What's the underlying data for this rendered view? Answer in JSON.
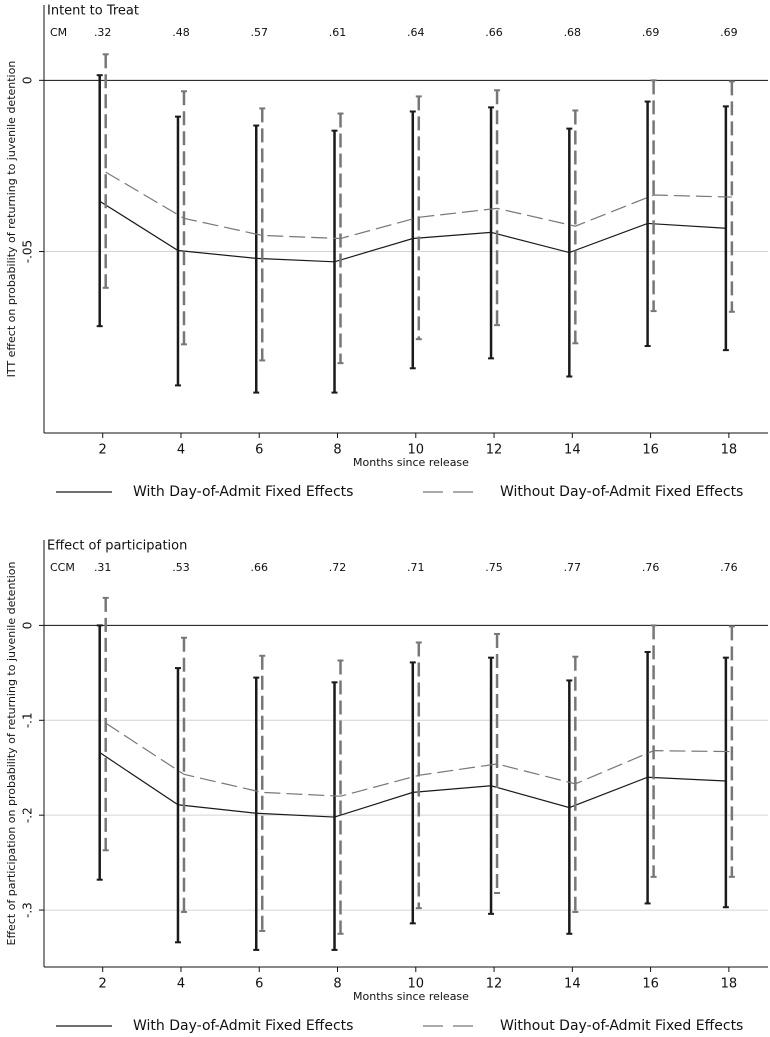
{
  "chart_data": [
    {
      "type": "line",
      "title": "Intent to Treat",
      "y_label": "ITT effect on probability of returning to juvenile detention",
      "x_label": "Months since release",
      "annotation_label": "CM",
      "annotations": [
        ".32",
        ".48",
        ".57",
        ".61",
        ".64",
        ".66",
        ".68",
        ".69",
        ".69"
      ],
      "x": [
        2,
        4,
        6,
        8,
        10,
        12,
        14,
        16,
        18
      ],
      "xlim": [
        0.5,
        19
      ],
      "xticks": [
        2,
        4,
        6,
        8,
        10,
        12,
        14,
        16,
        18
      ],
      "ylim": [
        -0.103,
        0.022
      ],
      "yticks": [
        {
          "value": -0.05,
          "label": "-.05"
        },
        0
      ],
      "grid": true,
      "legend": "bottom",
      "series": [
        {
          "name": "With Day-of-Admit Fixed Effects",
          "color": "#1a1a1a",
          "dashed": false,
          "values": [
            -0.0353,
            -0.0497,
            -0.052,
            -0.053,
            -0.0462,
            -0.0444,
            -0.0503,
            -0.0418,
            -0.0432
          ],
          "ci_low": [
            -0.0718,
            -0.0891,
            -0.0912,
            -0.0912,
            -0.0841,
            -0.0812,
            -0.0865,
            -0.0776,
            -0.0788
          ],
          "ci_high": [
            0.0015,
            -0.0106,
            -0.0132,
            -0.0147,
            -0.0091,
            -0.0079,
            -0.0141,
            -0.0062,
            -0.0076
          ]
        },
        {
          "name": "Without Day-of-Admit Fixed Effects",
          "color": "#777777",
          "dashed": true,
          "values": [
            -0.0268,
            -0.0403,
            -0.0453,
            -0.0462,
            -0.04,
            -0.0374,
            -0.0426,
            -0.0335,
            -0.0341
          ],
          "ci_low": [
            -0.0606,
            -0.0771,
            -0.0818,
            -0.0826,
            -0.0756,
            -0.0715,
            -0.0768,
            -0.0674,
            -0.0676
          ],
          "ci_high": [
            0.0076,
            -0.0032,
            -0.0082,
            -0.0097,
            -0.0047,
            -0.0029,
            -0.0088,
            0,
            -0.0003
          ]
        }
      ]
    },
    {
      "type": "line",
      "title": "Effect of participation",
      "y_label": "Effect of participation on probability of returning to juvenile detention",
      "x_label": "Months since release",
      "annotation_label": "CCM",
      "annotations": [
        ".31",
        ".53",
        ".66",
        ".72",
        ".71",
        ".75",
        ".77",
        ".76",
        ".76"
      ],
      "x": [
        2,
        4,
        6,
        8,
        10,
        12,
        14,
        16,
        18
      ],
      "xlim": [
        0.5,
        19
      ],
      "xticks": [
        2,
        4,
        6,
        8,
        10,
        12,
        14,
        16,
        18
      ],
      "ylim": [
        -0.36,
        0.09
      ],
      "yticks": [
        {
          "value": -0.3,
          "label": "-.3"
        },
        {
          "value": -0.2,
          "label": "-.2"
        },
        {
          "value": -0.1,
          "label": "-.1"
        },
        0
      ],
      "grid": true,
      "legend": "bottom",
      "series": [
        {
          "name": "With Day-of-Admit Fixed Effects",
          "color": "#1a1a1a",
          "dashed": false,
          "values": [
            -0.134,
            -0.189,
            -0.198,
            -0.202,
            -0.176,
            -0.169,
            -0.192,
            -0.16,
            -0.164
          ],
          "ci_low": [
            -0.268,
            -0.334,
            -0.342,
            -0.342,
            -0.314,
            -0.304,
            -0.325,
            -0.293,
            -0.297
          ],
          "ci_high": [
            0,
            -0.045,
            -0.055,
            -0.06,
            -0.039,
            -0.034,
            -0.058,
            -0.028,
            -0.034
          ]
        },
        {
          "name": "Without Day-of-Admit Fixed Effects",
          "color": "#777777",
          "dashed": true,
          "values": [
            -0.103,
            -0.157,
            -0.176,
            -0.18,
            -0.158,
            -0.146,
            -0.167,
            -0.132,
            -0.133
          ],
          "ci_low": [
            -0.237,
            -0.302,
            -0.322,
            -0.325,
            -0.298,
            -0.282,
            -0.302,
            -0.265,
            -0.265
          ],
          "ci_high": [
            0.029,
            -0.013,
            -0.032,
            -0.037,
            -0.018,
            -0.009,
            -0.033,
            0,
            -0.001
          ]
        }
      ]
    }
  ]
}
